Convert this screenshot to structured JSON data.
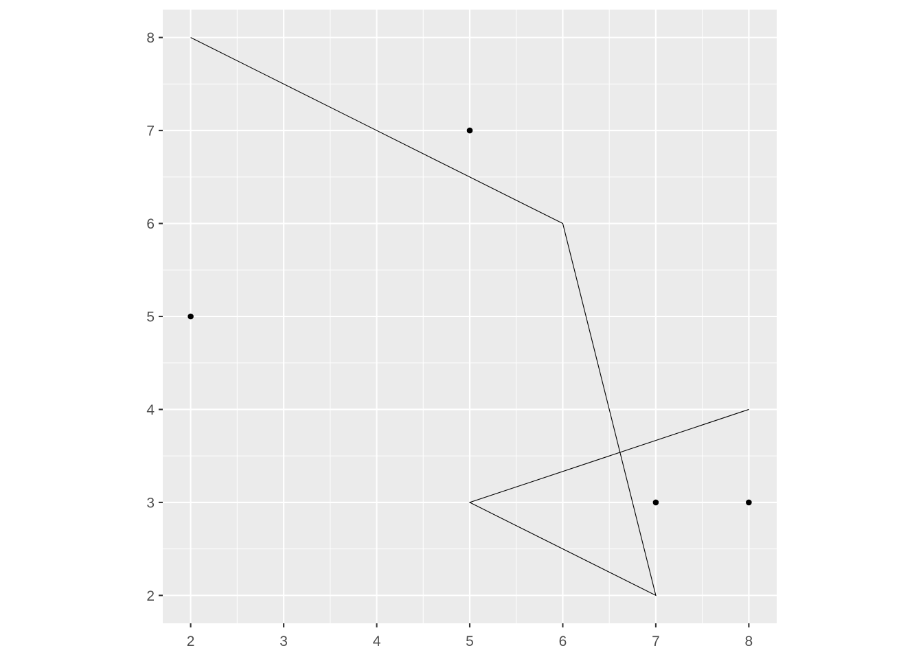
{
  "chart_data": {
    "type": "scatter",
    "title": "",
    "xlabel": "",
    "ylabel": "",
    "xlim": [
      1.7,
      8.3
    ],
    "ylim": [
      1.7,
      8.3
    ],
    "x_ticks": [
      2,
      3,
      4,
      5,
      6,
      7,
      8
    ],
    "y_ticks": [
      2,
      3,
      4,
      5,
      6,
      7,
      8
    ],
    "grid": true,
    "colors": {
      "panel": "#ebebeb",
      "grid": "#ffffff",
      "marks": "#000000",
      "tick_label": "#4d4d4d"
    },
    "series": [
      {
        "type": "path",
        "points": [
          {
            "x": 2,
            "y": 8
          },
          {
            "x": 6,
            "y": 6
          },
          {
            "x": 7,
            "y": 2
          },
          {
            "x": 5,
            "y": 3
          },
          {
            "x": 8,
            "y": 4
          }
        ]
      },
      {
        "type": "points",
        "points": [
          {
            "x": 2,
            "y": 5
          },
          {
            "x": 5,
            "y": 7
          },
          {
            "x": 7,
            "y": 3
          },
          {
            "x": 8,
            "y": 3
          }
        ]
      }
    ]
  }
}
